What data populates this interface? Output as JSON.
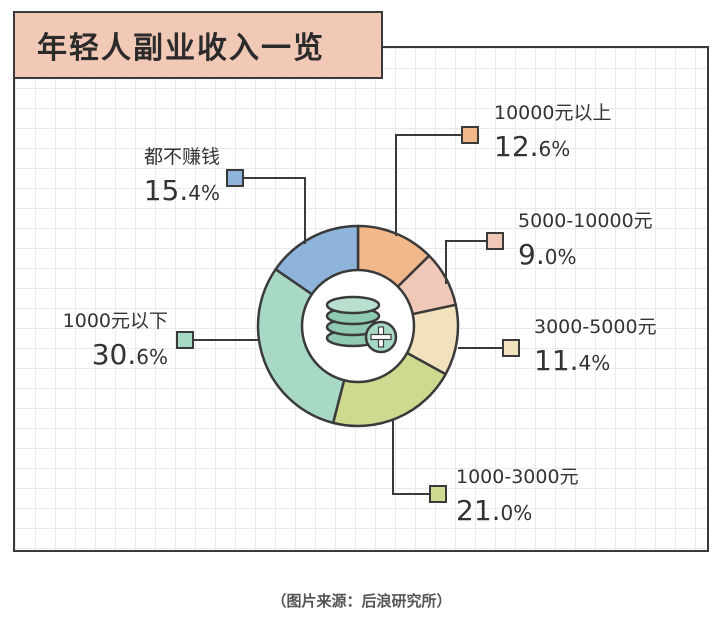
{
  "title": "年轻人副业收入一览",
  "source": "（图片来源：后浪研究所）",
  "chart_data": {
    "type": "pie",
    "title": "年轻人副业收入一览",
    "slices": [
      {
        "label": "10000元以上",
        "value": 12.6,
        "pct_int": "12.",
        "pct_dec": "6%",
        "color": "#f2b88a"
      },
      {
        "label": "5000-10000元",
        "value": 9.0,
        "pct_int": "9.",
        "pct_dec": "0%",
        "color": "#f0c8b8"
      },
      {
        "label": "3000-5000元",
        "value": 11.4,
        "pct_int": "11.",
        "pct_dec": "4%",
        "color": "#f1e1bd"
      },
      {
        "label": "1000-3000元",
        "value": 21.0,
        "pct_int": "21.",
        "pct_dec": "0%",
        "color": "#cfd98f"
      },
      {
        "label": "1000元以下",
        "value": 30.6,
        "pct_int": "30.",
        "pct_dec": "6%",
        "color": "#a7d9c4"
      },
      {
        "label": "都不赚钱",
        "value": 15.4,
        "pct_int": "15.",
        "pct_dec": "4%",
        "color": "#8fb4db"
      }
    ],
    "center_icon": "coin-stack-plus-icon"
  }
}
